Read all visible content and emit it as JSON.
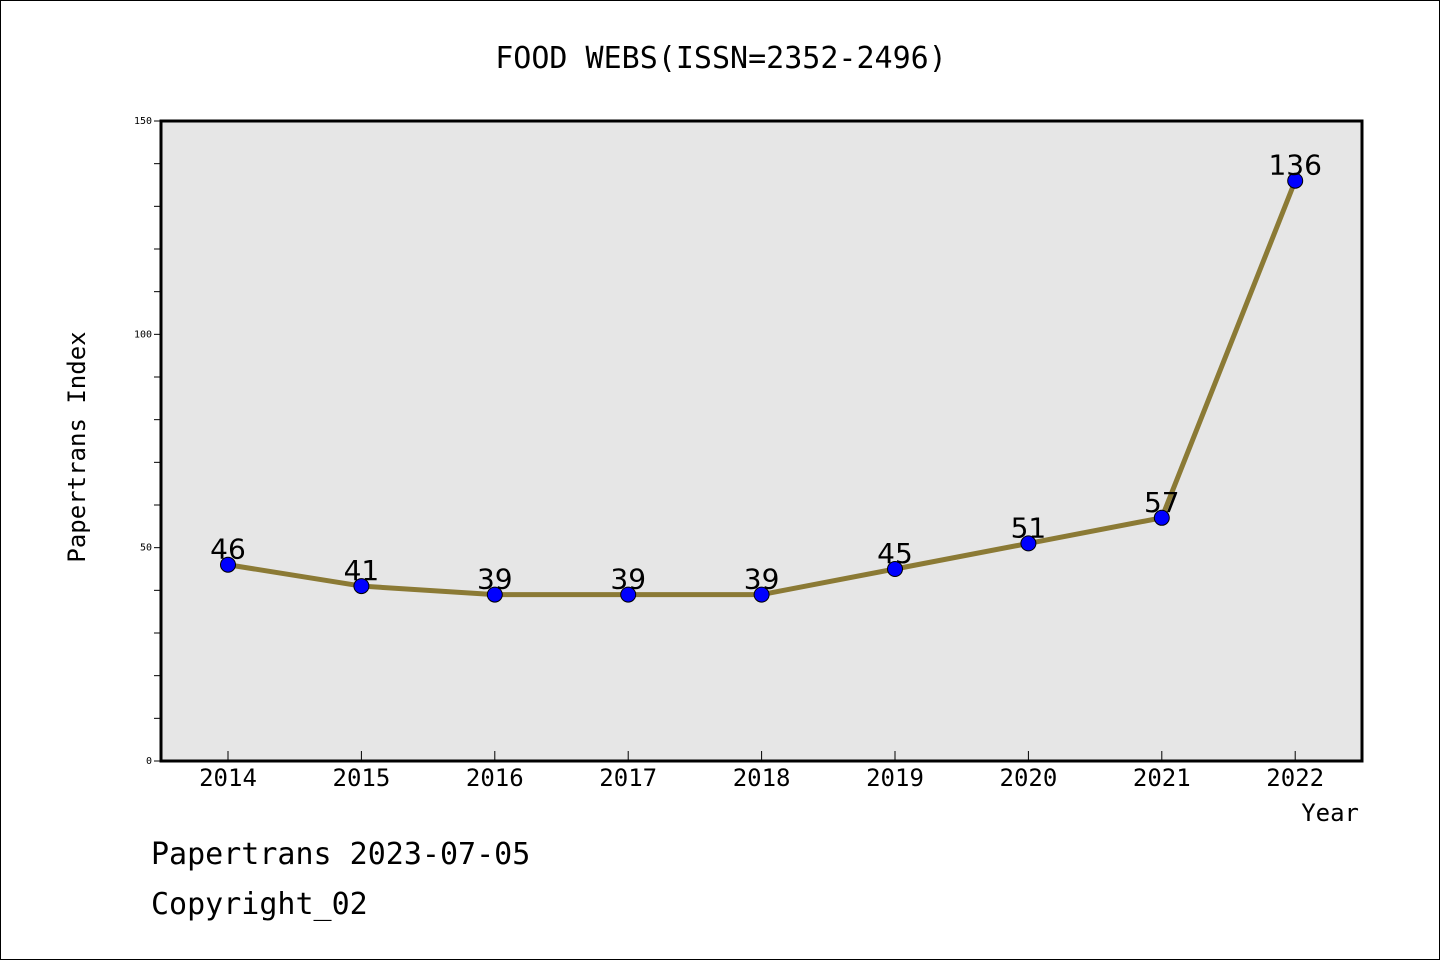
{
  "chart_data": {
    "type": "line",
    "title": "FOOD WEBS(ISSN=2352-2496)",
    "xlabel": "Year",
    "ylabel": "Papertrans Index",
    "categories": [
      "2014",
      "2015",
      "2016",
      "2017",
      "2018",
      "2019",
      "2020",
      "2021",
      "2022"
    ],
    "series": [
      {
        "values": [
          46,
          41,
          39,
          39,
          39,
          45,
          51,
          57,
          136
        ]
      }
    ],
    "ylim": [
      0,
      150
    ],
    "y_ticks": [
      0,
      50,
      100,
      150
    ],
    "grid": false,
    "line_color": "#8b7a35",
    "marker_color": "#0000ff",
    "plot_background": "#e6e6e6"
  },
  "footer": {
    "line1": "Papertrans 2023-07-05",
    "line2": "Copyright_02"
  }
}
